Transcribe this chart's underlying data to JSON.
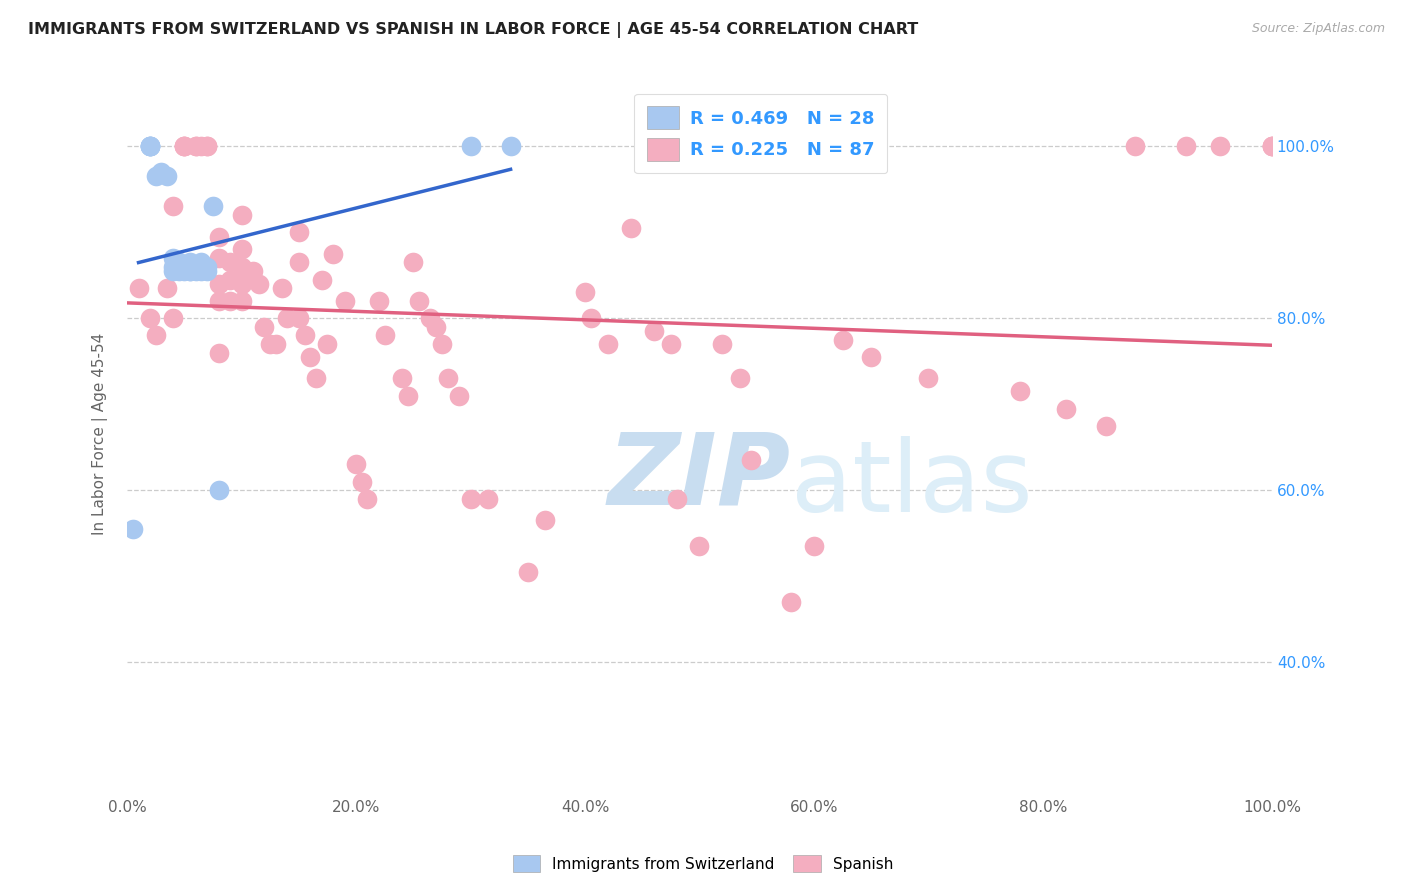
{
  "title": "IMMIGRANTS FROM SWITZERLAND VS SPANISH IN LABOR FORCE | AGE 45-54 CORRELATION CHART",
  "source": "Source: ZipAtlas.com",
  "ylabel": "In Labor Force | Age 45-54",
  "xlim": [
    0,
    1.0
  ],
  "ylim": [
    0.25,
    1.08
  ],
  "x_ticks": [
    0.0,
    0.2,
    0.4,
    0.6,
    0.8,
    1.0
  ],
  "y_ticks": [
    0.4,
    0.6,
    0.8,
    1.0
  ],
  "swiss_color": "#a8c8f0",
  "swiss_line_color": "#3366cc",
  "spanish_color": "#f4aec0",
  "spanish_line_color": "#e06080",
  "swiss_R": 0.469,
  "swiss_N": 28,
  "spanish_R": 0.225,
  "spanish_N": 87,
  "watermark_zip": "ZIP",
  "watermark_atlas": "atlas",
  "legend_label_swiss": "Immigrants from Switzerland",
  "legend_label_spanish": "Spanish",
  "swiss_x": [
    0.005,
    0.02,
    0.02,
    0.02,
    0.02,
    0.025,
    0.03,
    0.035,
    0.04,
    0.04,
    0.04,
    0.045,
    0.045,
    0.05,
    0.05,
    0.055,
    0.055,
    0.055,
    0.06,
    0.06,
    0.065,
    0.065,
    0.07,
    0.07,
    0.075,
    0.08,
    0.3,
    0.335
  ],
  "swiss_y": [
    0.555,
    1.0,
    1.0,
    1.0,
    1.0,
    0.965,
    0.97,
    0.965,
    0.87,
    0.86,
    0.855,
    0.865,
    0.855,
    0.86,
    0.855,
    0.865,
    0.855,
    0.855,
    0.86,
    0.855,
    0.865,
    0.855,
    0.86,
    0.855,
    0.93,
    0.6,
    1.0,
    1.0
  ],
  "spanish_x": [
    0.01,
    0.02,
    0.025,
    0.035,
    0.04,
    0.04,
    0.05,
    0.05,
    0.05,
    0.06,
    0.06,
    0.065,
    0.07,
    0.07,
    0.08,
    0.08,
    0.08,
    0.08,
    0.08,
    0.09,
    0.09,
    0.09,
    0.1,
    0.1,
    0.1,
    0.1,
    0.1,
    0.11,
    0.115,
    0.12,
    0.125,
    0.13,
    0.135,
    0.14,
    0.15,
    0.15,
    0.15,
    0.155,
    0.16,
    0.165,
    0.17,
    0.175,
    0.18,
    0.19,
    0.2,
    0.205,
    0.21,
    0.22,
    0.225,
    0.24,
    0.245,
    0.25,
    0.255,
    0.265,
    0.27,
    0.275,
    0.28,
    0.29,
    0.3,
    0.315,
    0.35,
    0.365,
    0.4,
    0.405,
    0.42,
    0.44,
    0.46,
    0.475,
    0.48,
    0.5,
    0.52,
    0.535,
    0.545,
    0.58,
    0.6,
    0.625,
    0.65,
    0.7,
    0.78,
    0.82,
    0.855,
    0.88,
    0.925,
    0.955,
    1.0,
    1.0,
    1.0
  ],
  "spanish_y": [
    0.835,
    0.8,
    0.78,
    0.835,
    0.93,
    0.8,
    1.0,
    1.0,
    1.0,
    1.0,
    1.0,
    1.0,
    1.0,
    1.0,
    0.895,
    0.87,
    0.84,
    0.82,
    0.76,
    0.865,
    0.845,
    0.82,
    0.92,
    0.88,
    0.86,
    0.84,
    0.82,
    0.855,
    0.84,
    0.79,
    0.77,
    0.77,
    0.835,
    0.8,
    0.9,
    0.865,
    0.8,
    0.78,
    0.755,
    0.73,
    0.845,
    0.77,
    0.875,
    0.82,
    0.63,
    0.61,
    0.59,
    0.82,
    0.78,
    0.73,
    0.71,
    0.865,
    0.82,
    0.8,
    0.79,
    0.77,
    0.73,
    0.71,
    0.59,
    0.59,
    0.505,
    0.565,
    0.83,
    0.8,
    0.77,
    0.905,
    0.785,
    0.77,
    0.59,
    0.535,
    0.77,
    0.73,
    0.635,
    0.47,
    0.535,
    0.775,
    0.755,
    0.73,
    0.715,
    0.695,
    0.675,
    1.0,
    1.0,
    1.0,
    1.0,
    1.0,
    1.0
  ]
}
